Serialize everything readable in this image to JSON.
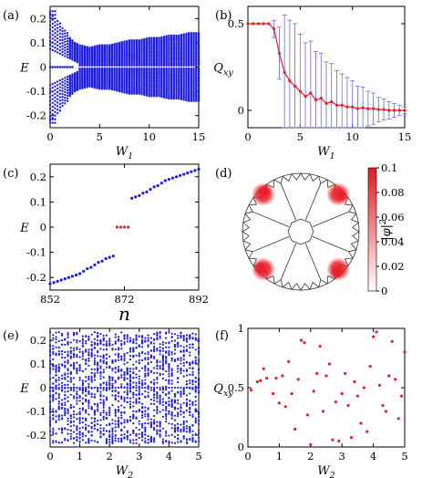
{
  "colors": {
    "blue": "#1f1fe0",
    "red": "#e8202a",
    "axis": "#000000",
    "lattice": "#333333"
  },
  "chart_data": [
    {
      "id": "a",
      "panel_label": "(a)",
      "type": "scatter",
      "xlabel": "W",
      "xlabel_sub": "1",
      "ylabel": "E",
      "xlim": [
        0,
        15
      ],
      "ylim": [
        -0.25,
        0.25
      ],
      "xticks": [
        0,
        5,
        10,
        15
      ],
      "yticks": [
        -0.2,
        -0.1,
        0,
        0.1,
        0.2
      ],
      "ytick_labels": [
        "-0.2",
        "-0.1",
        "0",
        "0.1",
        "0.2"
      ],
      "series": [
        {
          "color": "#1f1fe0",
          "description_points": {
            "x": [
              0.0,
              0.25,
              0.5,
              0.75,
              1.0,
              1.25,
              1.5,
              1.75,
              2.0,
              2.5,
              3.0,
              4.0,
              5.0,
              6.0,
              7.0,
              8.0,
              9.0,
              10.0,
              11.0,
              12.0,
              13.0,
              14.0,
              15.0
            ],
            "edge_upper": [
              0.22,
              0.21,
              0.2,
              0.19,
              0.18,
              0.16,
              0.15,
              0.14,
              0.12,
              0.1,
              0.09,
              0.08,
              0.09,
              0.09,
              0.1,
              0.11,
              0.11,
              0.12,
              0.12,
              0.13,
              0.13,
              0.14,
              0.14
            ]
          },
          "zero_modes": 0
        }
      ]
    },
    {
      "id": "b",
      "panel_label": "(b)",
      "type": "line",
      "xlabel": "W",
      "xlabel_sub": "1",
      "ylabel": "Q",
      "ylabel_sub": "xy",
      "xlim": [
        0,
        15
      ],
      "ylim": [
        -0.1,
        0.6
      ],
      "xticks": [
        0,
        5,
        10,
        15
      ],
      "yticks": [
        0,
        0.5
      ],
      "ytick_labels": [
        "0",
        "0.5"
      ],
      "x": [
        0,
        0.5,
        1,
        1.5,
        2,
        2.5,
        3,
        3.5,
        4,
        4.5,
        5,
        5.5,
        6,
        6.5,
        7,
        7.5,
        8,
        8.5,
        9,
        9.5,
        10,
        10.5,
        11,
        11.5,
        12,
        12.5,
        13,
        13.5,
        14,
        14.5,
        15
      ],
      "y": [
        0.5,
        0.5,
        0.5,
        0.5,
        0.5,
        0.47,
        0.33,
        0.22,
        0.17,
        0.14,
        0.11,
        0.08,
        0.1,
        0.06,
        0.07,
        0.04,
        0.05,
        0.03,
        0.03,
        0.02,
        0.02,
        0.01,
        0.015,
        0.01,
        0.01,
        0.005,
        0.005,
        0.0,
        0.0,
        0.0,
        0.0
      ],
      "err": [
        0,
        0,
        0,
        0,
        0,
        0.05,
        0.15,
        0.33,
        0.35,
        0.36,
        0.33,
        0.31,
        0.3,
        0.28,
        0.26,
        0.24,
        0.22,
        0.2,
        0.18,
        0.17,
        0.15,
        0.13,
        0.12,
        0.1,
        0.09,
        0.07,
        0.06,
        0.05,
        0.04,
        0.03,
        0.02
      ]
    },
    {
      "id": "c",
      "panel_label": "(c)",
      "type": "scatter",
      "xlabel": "n",
      "ylabel": "E",
      "xlim": [
        852,
        892
      ],
      "ylim": [
        -0.25,
        0.25
      ],
      "xticks": [
        852,
        872,
        892
      ],
      "yticks": [
        -0.2,
        -0.1,
        0,
        0.1,
        0.2
      ],
      "ytick_labels": [
        "-0.2",
        "-0.1",
        "0",
        "0.1",
        "0.2"
      ],
      "series": [
        {
          "color": "#1f1fe0",
          "x": [
            852,
            853,
            854,
            855,
            856,
            857,
            858,
            859,
            860,
            861,
            862,
            863,
            864,
            865,
            866,
            867,
            868,
            869,
            874,
            875,
            876,
            877,
            878,
            879,
            880,
            881,
            882,
            883,
            884,
            885,
            886,
            887,
            888,
            889,
            890,
            891,
            892
          ],
          "y": [
            -0.225,
            -0.22,
            -0.215,
            -0.21,
            -0.205,
            -0.2,
            -0.195,
            -0.19,
            -0.185,
            -0.175,
            -0.165,
            -0.16,
            -0.15,
            -0.14,
            -0.135,
            -0.125,
            -0.12,
            -0.115,
            0.115,
            0.12,
            0.125,
            0.135,
            0.14,
            0.15,
            0.16,
            0.165,
            0.175,
            0.185,
            0.19,
            0.195,
            0.2,
            0.205,
            0.21,
            0.215,
            0.22,
            0.225,
            0.23
          ]
        },
        {
          "color": "#e8202a",
          "x": [
            870,
            871,
            872,
            873
          ],
          "y": [
            0,
            0,
            0,
            0
          ]
        }
      ]
    },
    {
      "id": "d",
      "panel_label": "(d)",
      "type": "heatmap",
      "colorbar_label": "|φ|",
      "colorbar_sup": "2",
      "colorbar_ticks": [
        0,
        0.02,
        0.04,
        0.06,
        0.08,
        0.1
      ],
      "colorbar_tick_labels": [
        "0",
        "0.02",
        "0.04",
        "0.06",
        "0.08",
        "0.1"
      ],
      "clim": [
        0,
        0.1
      ],
      "hotspots_deg": [
        135,
        45,
        225,
        315
      ]
    },
    {
      "id": "e",
      "panel_label": "(e)",
      "type": "scatter",
      "xlabel": "W",
      "xlabel_sub": "2",
      "ylabel": "E",
      "xlim": [
        0,
        5
      ],
      "ylim": [
        -0.25,
        0.25
      ],
      "xticks": [
        0,
        1,
        2,
        3,
        4,
        5
      ],
      "yticks": [
        -0.2,
        -0.1,
        0,
        0.1,
        0.2
      ],
      "ytick_labels": [
        "-0.2",
        "-0.1",
        "0",
        "0.1",
        "0.2"
      ],
      "series": [
        {
          "color": "#1f1fe0",
          "x_step": 0.1,
          "levels_per_x": 36
        }
      ]
    },
    {
      "id": "f",
      "panel_label": "(f)",
      "type": "scatter",
      "xlabel": "W",
      "xlabel_sub": "2",
      "ylabel": "Q",
      "ylabel_sub": "xy",
      "xlim": [
        0,
        5
      ],
      "ylim": [
        0,
        1
      ],
      "xticks": [
        0,
        1,
        2,
        3,
        4,
        5
      ],
      "yticks": [
        0,
        0.5,
        1
      ],
      "ytick_labels": [
        "0",
        "0.5",
        "1"
      ],
      "series": [
        {
          "color": "#e8202a",
          "x": [
            0.1,
            0.3,
            0.4,
            0.5,
            0.6,
            0.8,
            0.9,
            1.0,
            1.1,
            1.2,
            1.3,
            1.4,
            1.5,
            1.6,
            1.7,
            1.8,
            1.9,
            2.0,
            2.1,
            2.2,
            2.3,
            2.4,
            2.5,
            2.6,
            2.7,
            2.8,
            2.9,
            3.0,
            3.1,
            3.2,
            3.3,
            3.4,
            3.5,
            3.6,
            3.7,
            3.8,
            3.9,
            4.0,
            4.1,
            4.2,
            4.3,
            4.4,
            4.5,
            4.6,
            4.7,
            4.8,
            4.9,
            5.0
          ],
          "y": [
            0.48,
            0.55,
            0.56,
            0.66,
            0.58,
            0.45,
            0.58,
            0.37,
            0.6,
            0.34,
            0.72,
            0.45,
            0.15,
            0.57,
            0.9,
            0.88,
            0.27,
            0.02,
            0.47,
            0.62,
            0.85,
            0.3,
            0.6,
            0.7,
            0.06,
            0.38,
            0.05,
            0.45,
            0.62,
            0.35,
            0.08,
            0.55,
            0.43,
            0.2,
            0.5,
            0.13,
            0.68,
            0.93,
            0.97,
            0.52,
            0.35,
            0.3,
            0.6,
            0.89,
            0.57,
            0.24,
            0.43,
            0.8
          ]
        }
      ]
    }
  ]
}
